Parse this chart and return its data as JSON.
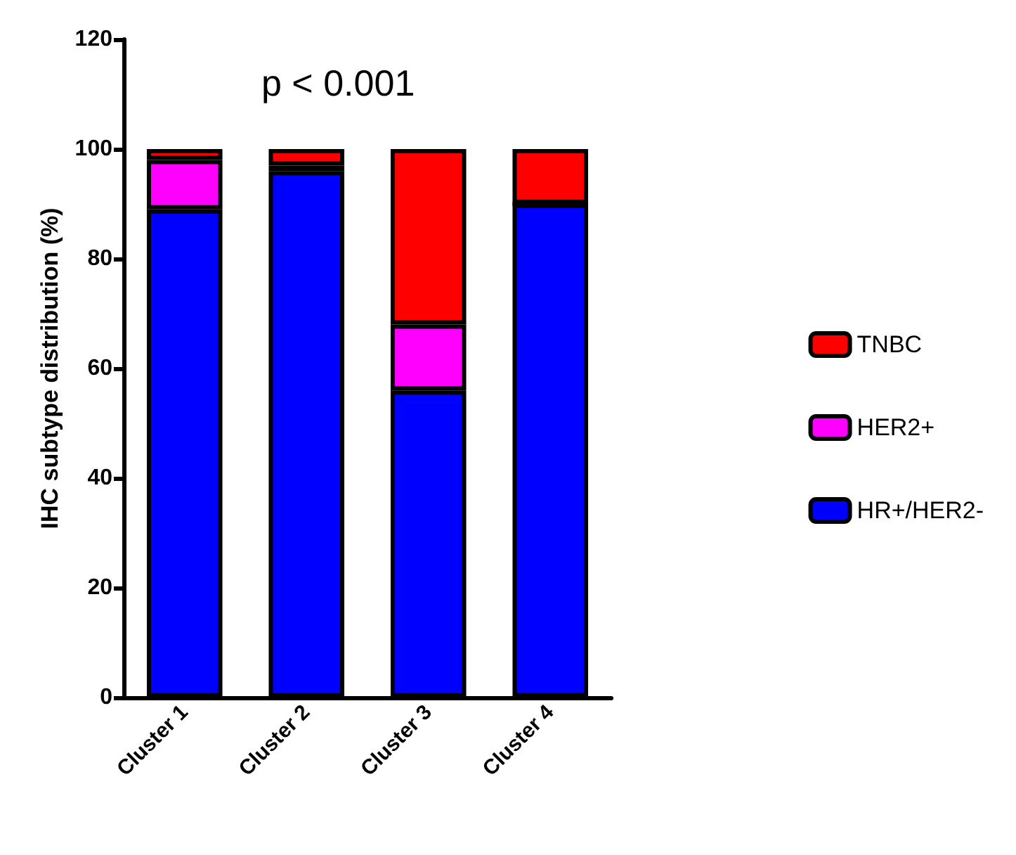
{
  "chart_data": {
    "type": "bar",
    "stacked": true,
    "ylabel": "IHC subtype distribution (%)",
    "categories": [
      "Cluster 1",
      "Cluster 2",
      "Cluster 3",
      "Cluster 4"
    ],
    "series": [
      {
        "name": "HR+/HER2-",
        "color": "#0000ff",
        "values": [
          89,
          96,
          56,
          90
        ]
      },
      {
        "name": "HER2+",
        "color": "#ff00ff",
        "values": [
          9,
          1,
          12,
          0
        ]
      },
      {
        "name": "TNBC",
        "color": "#ff0000",
        "values": [
          2,
          3,
          32,
          10
        ]
      }
    ],
    "ylim": [
      0,
      120
    ],
    "yticks": [
      0,
      20,
      40,
      60,
      80,
      100,
      120
    ],
    "grid": false,
    "legend": "right",
    "annotations": [
      "p < 0.001"
    ]
  }
}
